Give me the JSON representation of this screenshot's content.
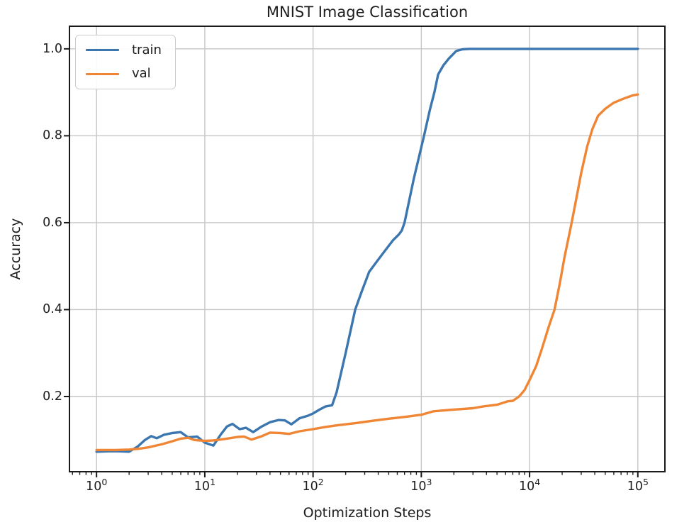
{
  "chart_data": {
    "type": "line",
    "title": "MNIST Image Classification",
    "xlabel": "Optimization Steps",
    "ylabel": "Accuracy",
    "xscale": "log",
    "xlim_log10": [
      -0.25,
      5.25
    ],
    "ylim": [
      0.027,
      1.052
    ],
    "grid": true,
    "grid_color": "#c6c6c6",
    "axis_color": "#1a1a1a",
    "legend": {
      "position": "upper left"
    },
    "x_ticks": [
      {
        "value": 1,
        "base": "10",
        "exponent": "0"
      },
      {
        "value": 10,
        "base": "10",
        "exponent": "1"
      },
      {
        "value": 100,
        "base": "10",
        "exponent": "2"
      },
      {
        "value": 1000,
        "base": "10",
        "exponent": "3"
      },
      {
        "value": 10000,
        "base": "10",
        "exponent": "4"
      },
      {
        "value": 100000,
        "base": "10",
        "exponent": "5"
      }
    ],
    "y_ticks": [
      {
        "value": 0.2,
        "label": "0.2"
      },
      {
        "value": 0.4,
        "label": "0.4"
      },
      {
        "value": 0.6,
        "label": "0.6"
      },
      {
        "value": 0.8,
        "label": "0.8"
      },
      {
        "value": 1.0,
        "label": "1.0"
      }
    ],
    "series": [
      {
        "name": "train",
        "color": "#3b76af",
        "x": [
          1,
          1.3,
          1.6,
          2,
          2.4,
          2.8,
          3.2,
          3.6,
          4.2,
          5,
          6,
          7,
          8.5,
          10,
          12,
          14,
          16,
          18,
          21,
          24,
          28,
          33,
          40,
          48,
          55,
          63,
          75,
          90,
          100,
          115,
          130,
          150,
          165,
          200,
          245,
          280,
          330,
          400,
          470,
          550,
          620,
          660,
          700,
          850,
          1060,
          1200,
          1320,
          1430,
          1600,
          1800,
          2100,
          2400,
          2800,
          4000,
          6000,
          10000,
          20000,
          40000,
          70000,
          100000
        ],
        "y": [
          0.073,
          0.074,
          0.074,
          0.073,
          0.085,
          0.1,
          0.109,
          0.104,
          0.112,
          0.116,
          0.118,
          0.106,
          0.108,
          0.094,
          0.087,
          0.112,
          0.131,
          0.137,
          0.125,
          0.128,
          0.118,
          0.13,
          0.141,
          0.146,
          0.145,
          0.136,
          0.15,
          0.156,
          0.161,
          0.17,
          0.177,
          0.18,
          0.21,
          0.3,
          0.4,
          0.44,
          0.487,
          0.515,
          0.538,
          0.56,
          0.573,
          0.582,
          0.6,
          0.7,
          0.8,
          0.86,
          0.9,
          0.941,
          0.962,
          0.978,
          0.995,
          0.999,
          1.0,
          1.0,
          1.0,
          1.0,
          1.0,
          1.0,
          1.0,
          1.0
        ]
      },
      {
        "name": "val",
        "color": "#ef8636",
        "x": [
          1,
          1.5,
          2,
          2.5,
          3,
          4,
          5,
          6,
          7,
          8,
          10,
          12,
          14,
          17,
          20,
          23,
          27,
          33,
          40,
          50,
          60,
          75,
          100,
          130,
          170,
          250,
          350,
          500,
          700,
          1000,
          1300,
          2000,
          3000,
          3700,
          5000,
          6300,
          7000,
          8000,
          9000,
          10000,
          11500,
          13000,
          15000,
          17000,
          19000,
          21000,
          24000,
          27000,
          30000,
          34000,
          38000,
          43000,
          50000,
          60000,
          75000,
          90000,
          100000
        ],
        "y": [
          0.077,
          0.077,
          0.078,
          0.08,
          0.083,
          0.09,
          0.097,
          0.103,
          0.105,
          0.1,
          0.098,
          0.099,
          0.101,
          0.104,
          0.107,
          0.108,
          0.101,
          0.108,
          0.117,
          0.116,
          0.114,
          0.12,
          0.125,
          0.13,
          0.134,
          0.139,
          0.144,
          0.149,
          0.153,
          0.158,
          0.166,
          0.17,
          0.173,
          0.177,
          0.181,
          0.189,
          0.19,
          0.2,
          0.215,
          0.238,
          0.27,
          0.31,
          0.36,
          0.4,
          0.46,
          0.52,
          0.59,
          0.655,
          0.715,
          0.775,
          0.815,
          0.846,
          0.862,
          0.876,
          0.886,
          0.893,
          0.895
        ]
      }
    ]
  }
}
